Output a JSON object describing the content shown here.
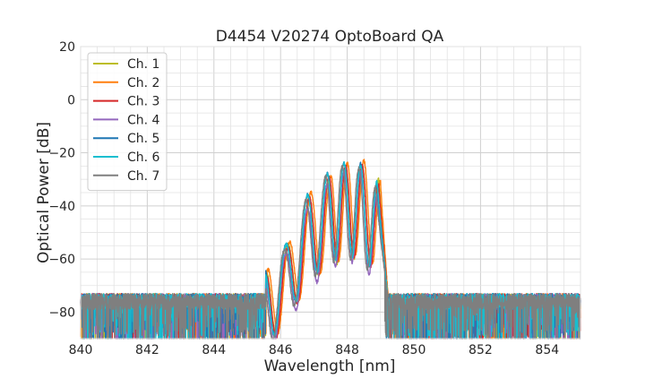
{
  "chart_data": {
    "type": "line",
    "title": "D4454 V20274 OptoBoard QA",
    "xlabel": "Wavelength [nm]",
    "ylabel": "Optical Power [dB]",
    "xlim": [
      840,
      855
    ],
    "ylim": [
      -90,
      20
    ],
    "x_ticks": [
      "840",
      "842",
      "844",
      "846",
      "848",
      "850",
      "852",
      "854"
    ],
    "y_ticks": [
      "20",
      "0",
      "−20",
      "−40",
      "−60",
      "−80"
    ],
    "grid": true,
    "legend_position": "top-left",
    "noise_floor_db": -76,
    "signal_range_nm": [
      845.6,
      849.2
    ],
    "series": [
      {
        "name": "Ch. 1",
        "color": "#bcbd22",
        "peaks": [
          {
            "x": 845.55,
            "y": -65
          },
          {
            "x": 846.2,
            "y": -55
          },
          {
            "x": 846.85,
            "y": -37
          },
          {
            "x": 847.45,
            "y": -30
          },
          {
            "x": 847.95,
            "y": -26
          },
          {
            "x": 848.45,
            "y": -25
          },
          {
            "x": 848.95,
            "y": -30
          }
        ]
      },
      {
        "name": "Ch. 2",
        "color": "#ff7f0e",
        "peaks": [
          {
            "x": 845.6,
            "y": -64
          },
          {
            "x": 846.25,
            "y": -54
          },
          {
            "x": 846.9,
            "y": -35
          },
          {
            "x": 847.5,
            "y": -29
          },
          {
            "x": 848.0,
            "y": -24
          },
          {
            "x": 848.5,
            "y": -23
          },
          {
            "x": 849.0,
            "y": -31
          }
        ]
      },
      {
        "name": "Ch. 3",
        "color": "#d62728",
        "peaks": [
          {
            "x": 845.55,
            "y": -66
          },
          {
            "x": 846.2,
            "y": -56
          },
          {
            "x": 846.85,
            "y": -37
          },
          {
            "x": 847.45,
            "y": -29
          },
          {
            "x": 847.95,
            "y": -25
          },
          {
            "x": 848.45,
            "y": -25
          },
          {
            "x": 848.95,
            "y": -32
          }
        ]
      },
      {
        "name": "Ch. 4",
        "color": "#9467bd",
        "peaks": [
          {
            "x": 845.5,
            "y": -68
          },
          {
            "x": 846.15,
            "y": -58
          },
          {
            "x": 846.8,
            "y": -41
          },
          {
            "x": 847.4,
            "y": -32
          },
          {
            "x": 847.9,
            "y": -27
          },
          {
            "x": 848.4,
            "y": -27
          },
          {
            "x": 848.9,
            "y": -36
          }
        ]
      },
      {
        "name": "Ch. 5",
        "color": "#1f77b4",
        "peaks": [
          {
            "x": 845.5,
            "y": -64
          },
          {
            "x": 846.15,
            "y": -55
          },
          {
            "x": 846.8,
            "y": -36
          },
          {
            "x": 847.4,
            "y": -28
          },
          {
            "x": 847.9,
            "y": -24
          },
          {
            "x": 848.4,
            "y": -24
          },
          {
            "x": 848.9,
            "y": -32
          }
        ]
      },
      {
        "name": "Ch. 6",
        "color": "#17becf",
        "peaks": [
          {
            "x": 845.5,
            "y": -65
          },
          {
            "x": 846.15,
            "y": -55
          },
          {
            "x": 846.8,
            "y": -36
          },
          {
            "x": 847.4,
            "y": -28
          },
          {
            "x": 847.9,
            "y": -24
          },
          {
            "x": 848.4,
            "y": -25
          },
          {
            "x": 848.9,
            "y": -31
          }
        ]
      },
      {
        "name": "Ch. 7",
        "color": "#7f7f7f",
        "peaks": [
          {
            "x": 845.45,
            "y": -67
          },
          {
            "x": 846.1,
            "y": -57
          },
          {
            "x": 846.75,
            "y": -38
          },
          {
            "x": 847.35,
            "y": -29
          },
          {
            "x": 847.85,
            "y": -25
          },
          {
            "x": 848.35,
            "y": -26
          },
          {
            "x": 848.85,
            "y": -33
          }
        ]
      }
    ]
  }
}
